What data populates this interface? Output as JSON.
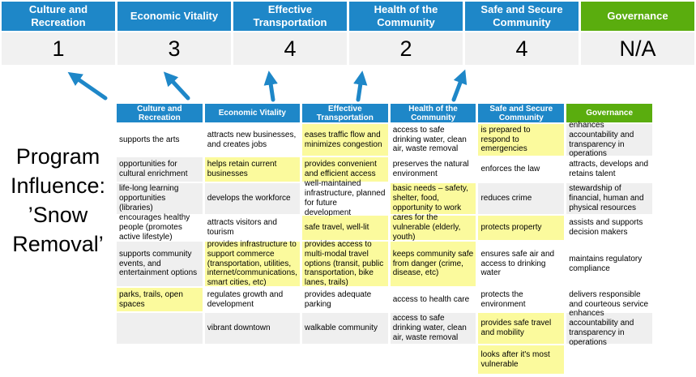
{
  "title": "Program Influence: ’Snow Removal’",
  "program_label": {
    "line1": "Program",
    "line2": "Influence:",
    "line3": "’Snow",
    "line4": "Removal’"
  },
  "colors": {
    "header_blue": "#1E87C8",
    "header_green": "#5AAD0E",
    "highlight_yellow": "#FBFA9D",
    "stripe_gray": "#EFEFEF",
    "score_row_bg": "#F1F1F1",
    "arrow_blue": "#1E87C8"
  },
  "banner": {
    "items": [
      {
        "label": "Culture and Recreation",
        "score": "1",
        "color": "blue"
      },
      {
        "label": "Economic Vitality",
        "score": "3",
        "color": "blue"
      },
      {
        "label": "Effective Transportation",
        "score": "4",
        "color": "blue"
      },
      {
        "label": "Health of the Community",
        "score": "2",
        "color": "blue"
      },
      {
        "label": "Safe and Secure Community",
        "score": "4",
        "color": "blue"
      },
      {
        "label": "Governance",
        "score": "N/A",
        "color": "green"
      }
    ]
  },
  "matrix": {
    "columns": [
      {
        "header": "Culture and Recreation",
        "header_color": "blue",
        "cells": [
          {
            "text": "supports the arts",
            "bg": "white"
          },
          {
            "text": "opportunities for cultural enrichment",
            "bg": "gray"
          },
          {
            "text": "life-long learning opportunities (libraries)",
            "bg": "gray"
          },
          {
            "text": "encourages healthy people (promotes active lifestyle)",
            "bg": "white"
          },
          {
            "text": "supports community events, and entertainment options",
            "bg": "gray"
          },
          {
            "text": "parks, trails, open spaces",
            "bg": "yellow"
          },
          {
            "text": "",
            "bg": "gray"
          },
          {
            "text": "",
            "bg": "white"
          }
        ]
      },
      {
        "header": "Economic Vitality",
        "header_color": "blue",
        "cells": [
          {
            "text": "attracts new businesses, and creates jobs",
            "bg": "white"
          },
          {
            "text": "helps retain current businesses",
            "bg": "yellow"
          },
          {
            "text": "develops the workforce",
            "bg": "gray"
          },
          {
            "text": "attracts visitors and tourism",
            "bg": "white"
          },
          {
            "text": "provides infrastructure to support commerce (transportation, utilities, internet/communications, smart cities, etc)",
            "bg": "yellow"
          },
          {
            "text": "regulates growth and development",
            "bg": "white"
          },
          {
            "text": "vibrant downtown",
            "bg": "gray"
          },
          {
            "text": "",
            "bg": "white"
          }
        ]
      },
      {
        "header": "Effective Transportation",
        "header_color": "blue",
        "cells": [
          {
            "text": "eases traffic flow and minimizes congestion",
            "bg": "yellow"
          },
          {
            "text": "provides convenient and efficient access",
            "bg": "yellow"
          },
          {
            "text": "well-maintained infrastructure, planned for future development",
            "bg": "white"
          },
          {
            "text": "safe travel, well-lit",
            "bg": "yellow"
          },
          {
            "text": "provides access to multi-modal travel options (transit, public transportation, bike lanes, trails)",
            "bg": "yellow"
          },
          {
            "text": "provides adequate parking",
            "bg": "white"
          },
          {
            "text": "walkable community",
            "bg": "gray"
          },
          {
            "text": "",
            "bg": "white"
          }
        ]
      },
      {
        "header": "Health of the Community",
        "header_color": "blue",
        "cells": [
          {
            "text": "access to safe drinking water, clean air, waste removal",
            "bg": "white"
          },
          {
            "text": "preserves the natural environment",
            "bg": "white"
          },
          {
            "text": "basic needs – safety, shelter, food, opportunity to work",
            "bg": "yellow"
          },
          {
            "text": "cares for the vulnerable (elderly, youth)",
            "bg": "yellow"
          },
          {
            "text": "keeps community safe from danger (crime, disease, etc)",
            "bg": "yellow"
          },
          {
            "text": "access to health care",
            "bg": "white"
          },
          {
            "text": "access to safe drinking water, clean air, waste removal",
            "bg": "gray"
          },
          {
            "text": "",
            "bg": "white"
          }
        ]
      },
      {
        "header": "Safe and Secure Community",
        "header_color": "blue",
        "cells": [
          {
            "text": "is prepared to respond to emergencies",
            "bg": "yellow"
          },
          {
            "text": "enforces the law",
            "bg": "white"
          },
          {
            "text": "reduces crime",
            "bg": "gray"
          },
          {
            "text": "protects property",
            "bg": "yellow"
          },
          {
            "text": "ensures safe air and access to drinking water",
            "bg": "white"
          },
          {
            "text": "protects the environment",
            "bg": "white"
          },
          {
            "text": "provides safe travel and mobility",
            "bg": "yellow"
          },
          {
            "text": "looks after it's most vulnerable",
            "bg": "yellow"
          }
        ]
      },
      {
        "header": "Governance",
        "header_color": "green",
        "cells": [
          {
            "text": "enhances accountability and transparency in operations",
            "bg": "gray"
          },
          {
            "text": "attracts, develops and retains talent",
            "bg": "white"
          },
          {
            "text": "stewardship of financial, human and physical resources",
            "bg": "gray"
          },
          {
            "text": "assists and supports decision makers",
            "bg": "white"
          },
          {
            "text": "maintains regulatory compliance",
            "bg": "white"
          },
          {
            "text": "delivers responsible and courteous service",
            "bg": "white"
          },
          {
            "text": "enhances accountability and transparency in operations",
            "bg": "gray"
          },
          {
            "text": "",
            "bg": "white"
          }
        ]
      }
    ]
  }
}
